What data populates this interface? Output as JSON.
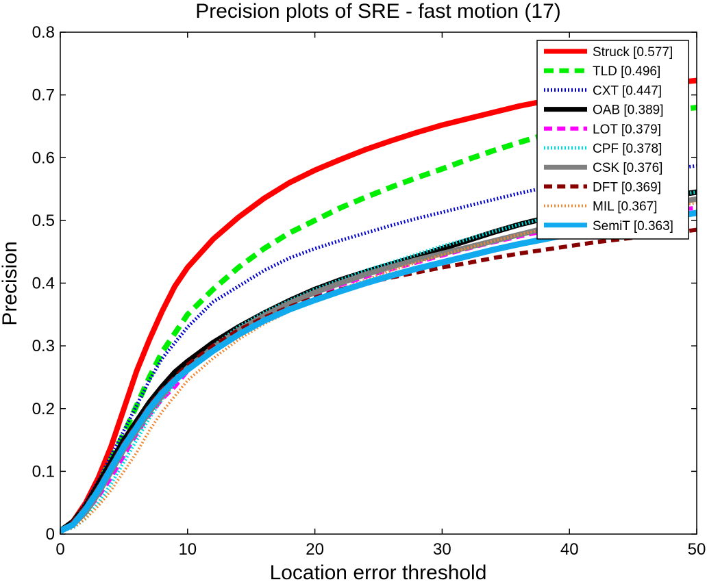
{
  "chart_data": {
    "type": "line",
    "title": "Precision plots of SRE - fast motion (17)",
    "xlabel": "Location error threshold",
    "ylabel": "Precision",
    "xlim": [
      0,
      50
    ],
    "ylim": [
      0,
      0.8
    ],
    "xticks": [
      "0",
      "10",
      "20",
      "30",
      "40",
      "50"
    ],
    "yticks": [
      "0",
      "0.1",
      "0.2",
      "0.3",
      "0.4",
      "0.5",
      "0.6",
      "0.7",
      "0.8"
    ],
    "grid": false,
    "legend_position": "top-right",
    "x": [
      0,
      1,
      2,
      3,
      4,
      5,
      6,
      7,
      8,
      9,
      10,
      12,
      14,
      16,
      18,
      20,
      22,
      24,
      26,
      28,
      30,
      32,
      34,
      36,
      38,
      40,
      42,
      44,
      46,
      48,
      50
    ],
    "series": [
      {
        "name": "Struck [0.577]",
        "color": "#ff0000",
        "style": "solid",
        "width": 8,
        "values": [
          0.005,
          0.02,
          0.05,
          0.09,
          0.14,
          0.2,
          0.26,
          0.31,
          0.355,
          0.395,
          0.425,
          0.47,
          0.505,
          0.535,
          0.56,
          0.58,
          0.597,
          0.613,
          0.627,
          0.64,
          0.652,
          0.662,
          0.672,
          0.682,
          0.69,
          0.697,
          0.703,
          0.709,
          0.714,
          0.719,
          0.723
        ]
      },
      {
        "name": "TLD [0.496]",
        "color": "#00ee00",
        "style": "dashed",
        "width": 8,
        "values": [
          0.005,
          0.02,
          0.045,
          0.08,
          0.12,
          0.16,
          0.205,
          0.25,
          0.29,
          0.32,
          0.35,
          0.39,
          0.425,
          0.455,
          0.48,
          0.5,
          0.52,
          0.537,
          0.553,
          0.568,
          0.582,
          0.597,
          0.611,
          0.624,
          0.636,
          0.646,
          0.655,
          0.663,
          0.669,
          0.675,
          0.68
        ]
      },
      {
        "name": "CXT [0.447]",
        "color": "#0000cc",
        "style": "dotted",
        "width": 5,
        "values": [
          0.005,
          0.02,
          0.05,
          0.085,
          0.125,
          0.165,
          0.205,
          0.245,
          0.28,
          0.305,
          0.33,
          0.37,
          0.395,
          0.42,
          0.44,
          0.455,
          0.468,
          0.48,
          0.492,
          0.503,
          0.513,
          0.523,
          0.533,
          0.543,
          0.552,
          0.56,
          0.566,
          0.572,
          0.577,
          0.582,
          0.587
        ]
      },
      {
        "name": "OAB [0.389]",
        "color": "#000000",
        "style": "solid",
        "width": 8,
        "values": [
          0.005,
          0.02,
          0.045,
          0.08,
          0.115,
          0.15,
          0.18,
          0.21,
          0.235,
          0.258,
          0.275,
          0.305,
          0.33,
          0.352,
          0.372,
          0.39,
          0.405,
          0.418,
          0.43,
          0.442,
          0.455,
          0.468,
          0.481,
          0.493,
          0.503,
          0.512,
          0.52,
          0.527,
          0.533,
          0.539,
          0.545
        ]
      },
      {
        "name": "LOT [0.379]",
        "color": "#ff00ff",
        "style": "dashed",
        "width": 6,
        "values": [
          0.005,
          0.015,
          0.035,
          0.06,
          0.09,
          0.125,
          0.16,
          0.19,
          0.215,
          0.235,
          0.26,
          0.295,
          0.322,
          0.345,
          0.365,
          0.382,
          0.397,
          0.41,
          0.422,
          0.433,
          0.444,
          0.455,
          0.465,
          0.474,
          0.483,
          0.491,
          0.498,
          0.505,
          0.511,
          0.516,
          0.52
        ]
      },
      {
        "name": "CPF [0.378]",
        "color": "#00dddd",
        "style": "dotted",
        "width": 5,
        "values": [
          0.005,
          0.01,
          0.025,
          0.05,
          0.08,
          0.115,
          0.15,
          0.185,
          0.215,
          0.24,
          0.265,
          0.3,
          0.33,
          0.353,
          0.372,
          0.39,
          0.405,
          0.42,
          0.433,
          0.446,
          0.459,
          0.47,
          0.482,
          0.493,
          0.503,
          0.513,
          0.521,
          0.528,
          0.534,
          0.54,
          0.545
        ]
      },
      {
        "name": "CSK [0.376]",
        "color": "#808080",
        "style": "solid",
        "width": 8,
        "values": [
          0.005,
          0.015,
          0.035,
          0.065,
          0.1,
          0.135,
          0.165,
          0.195,
          0.22,
          0.245,
          0.265,
          0.297,
          0.325,
          0.348,
          0.368,
          0.385,
          0.4,
          0.414,
          0.426,
          0.437,
          0.447,
          0.457,
          0.467,
          0.477,
          0.487,
          0.496,
          0.505,
          0.513,
          0.52,
          0.527,
          0.534
        ]
      },
      {
        "name": "DFT [0.369]",
        "color": "#880000",
        "style": "dashed",
        "width": 6,
        "values": [
          0.005,
          0.02,
          0.045,
          0.075,
          0.11,
          0.145,
          0.175,
          0.205,
          0.23,
          0.25,
          0.27,
          0.3,
          0.325,
          0.345,
          0.362,
          0.377,
          0.39,
          0.4,
          0.409,
          0.417,
          0.425,
          0.432,
          0.44,
          0.447,
          0.453,
          0.459,
          0.465,
          0.47,
          0.475,
          0.48,
          0.485
        ]
      },
      {
        "name": "MIL [0.367]",
        "color": "#ee8833",
        "style": "dotted",
        "width": 4,
        "values": [
          0.005,
          0.01,
          0.025,
          0.045,
          0.07,
          0.1,
          0.13,
          0.165,
          0.195,
          0.22,
          0.245,
          0.28,
          0.31,
          0.335,
          0.355,
          0.372,
          0.39,
          0.405,
          0.42,
          0.433,
          0.445,
          0.456,
          0.467,
          0.477,
          0.486,
          0.494,
          0.502,
          0.509,
          0.516,
          0.522,
          0.528
        ]
      },
      {
        "name": "SemiT [0.363]",
        "color": "#11aaee",
        "style": "solid",
        "width": 9,
        "values": [
          0.005,
          0.015,
          0.04,
          0.07,
          0.105,
          0.14,
          0.17,
          0.2,
          0.225,
          0.245,
          0.262,
          0.292,
          0.318,
          0.34,
          0.358,
          0.373,
          0.387,
          0.4,
          0.412,
          0.423,
          0.433,
          0.443,
          0.453,
          0.462,
          0.47,
          0.478,
          0.486,
          0.493,
          0.5,
          0.506,
          0.512
        ]
      }
    ]
  }
}
